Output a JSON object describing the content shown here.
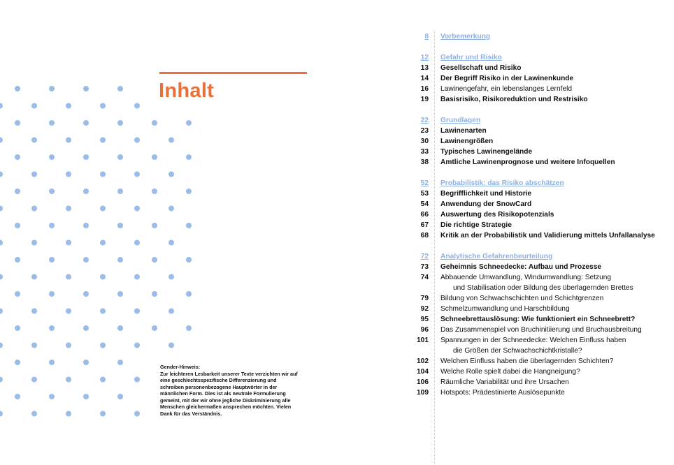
{
  "title": "Inhalt",
  "accent_color": "#e8703a",
  "dot_color": "#9bbbe8",
  "link_color": "#8eb0e2",
  "gender_note": {
    "heading": "Gender-Hinweis:",
    "text": "Zur leichteren Lesbarkeit unserer Texte verzichten wir auf eine geschlechtsspezifische Differenzierung und schreiben personenbezogene Hauptwörter in der männlichen Form. Dies ist als neutrale Formulierung gemeint, mit der wir ohne jegliche Diskriminierung alle Menschen gleichermaßen ansprechen möchten. Vielen Dank für das Verständnis."
  },
  "toc": [
    {
      "page": "8",
      "title": "Vorbemerkung",
      "items": []
    },
    {
      "page": "12",
      "title": "Gefahr und Risiko",
      "items": [
        {
          "page": "13",
          "title": "Gesellschaft und Risiko",
          "bold": true
        },
        {
          "page": "14",
          "title": "Der Begriff Risiko in der Lawinenkunde",
          "bold": true
        },
        {
          "page": "16",
          "title": "Lawinengefahr, ein lebenslanges Lernfeld",
          "bold": false
        },
        {
          "page": "19",
          "title": "Basisrisiko, Risikoreduktion und Restrisiko",
          "bold": true
        }
      ]
    },
    {
      "page": "22",
      "title": "Grundlagen",
      "items": [
        {
          "page": "23",
          "title": "Lawinenarten",
          "bold": true
        },
        {
          "page": "30",
          "title": "Lawinengrößen",
          "bold": true
        },
        {
          "page": "33",
          "title": "Typisches Lawinengelände",
          "bold": true
        },
        {
          "page": "38",
          "title": "Amtliche Lawinenprognose und weitere Infoquellen",
          "bold": true
        }
      ]
    },
    {
      "page": "52",
      "title": "Probabilistik: das Risiko abschätzen",
      "items": [
        {
          "page": "53",
          "title": "Begrifflichkeit und Historie",
          "bold": true
        },
        {
          "page": "54",
          "title": "Anwendung der SnowCard",
          "bold": true
        },
        {
          "page": "66",
          "title": "Auswertung des Risikopotenzials",
          "bold": true
        },
        {
          "page": "67",
          "title": "Die richtige Strategie",
          "bold": true
        },
        {
          "page": "68",
          "title": "Kritik an der Probabilistik und Validierung mittels Unfallanalyse",
          "bold": true
        }
      ]
    },
    {
      "page": "72",
      "title": "Analytische Gefahrenbeurteilung",
      "items": [
        {
          "page": "73",
          "title": "Geheimnis Schneedecke: Aufbau und Prozesse",
          "bold": true
        },
        {
          "page": "74",
          "title": "Abbauende Umwandlung, Windumwandlung: Setzung",
          "cont": "und Stabilisation oder Bildung des überlagernden Brettes",
          "bold": false
        },
        {
          "page": "79",
          "title": "Bildung von Schwachschichten und Schichtgrenzen",
          "bold": false
        },
        {
          "page": "92",
          "title": "Schmelzumwandlung und Harschbildung",
          "bold": false
        },
        {
          "page": "95",
          "title": "Schneebrettauslösung: Wie funktioniert ein Schneebrett?",
          "bold": true
        },
        {
          "page": "96",
          "title": "Das Zusammenspiel von Bruchinitiierung und Bruchausbreitung",
          "bold": false
        },
        {
          "page": "101",
          "title": "Spannungen in der Schneedecke: Welchen Einfluss haben",
          "cont": "die Größen der Schwachschichtkristalle?",
          "bold": false
        },
        {
          "page": "102",
          "title": "Welchen Einfluss haben die überlagernden Schichten?",
          "bold": false
        },
        {
          "page": "104",
          "title": "Welche Rolle spielt dabei die Hangneigung?",
          "bold": false
        },
        {
          "page": "106",
          "title": "Räumliche Variabilität und ihre Ursachen",
          "bold": false
        },
        {
          "page": "109",
          "title": "Hotspots: Prädestinierte Auslösepunkte",
          "bold": false
        }
      ]
    }
  ]
}
